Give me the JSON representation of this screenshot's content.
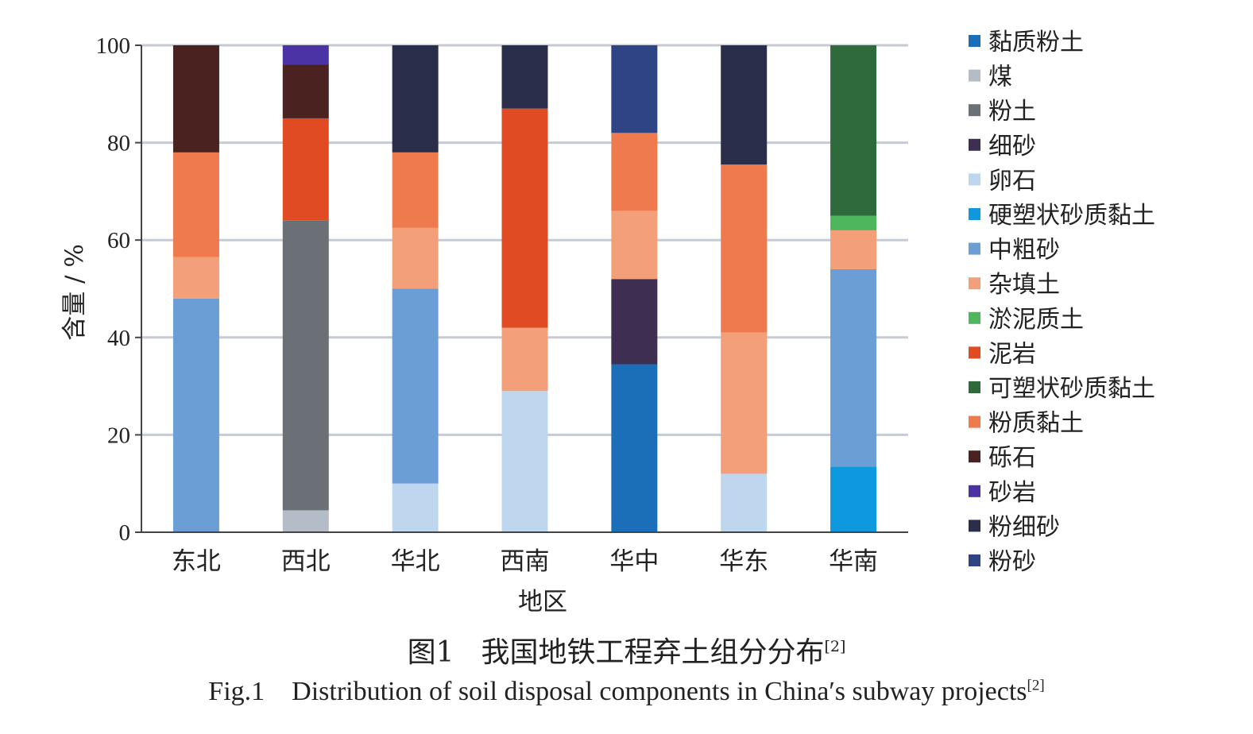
{
  "figure": {
    "caption_cn_label": "图1",
    "caption_cn_text": "我国地铁工程弃土组分分布",
    "caption_ref": "[2]",
    "caption_en_label": "Fig.1",
    "caption_en_text": "Distribution of soil disposal components in China′s subway projects"
  },
  "chart_data": {
    "type": "bar",
    "stacked": true,
    "title": "",
    "xlabel": "地区",
    "ylabel": "含量 / %",
    "ylim": [
      0,
      100
    ],
    "yticks": [
      0,
      20,
      40,
      60,
      80,
      100
    ],
    "grid": true,
    "legend_position": "right",
    "categories": [
      "东北",
      "西北",
      "华北",
      "西南",
      "华中",
      "华东",
      "华南"
    ],
    "series": [
      {
        "name": "黏质粉土",
        "color": "#1a6fb8",
        "values": [
          0,
          0,
          0,
          0,
          34.5,
          0,
          0
        ]
      },
      {
        "name": "煤",
        "color": "#b3bcc7",
        "values": [
          0,
          4.5,
          0,
          0,
          0,
          0,
          0
        ]
      },
      {
        "name": "粉土",
        "color": "#6b7077",
        "values": [
          0,
          59.5,
          0,
          0,
          0,
          0,
          0
        ]
      },
      {
        "name": "细砂",
        "color": "#3e2e52",
        "values": [
          0,
          0,
          0,
          0,
          17.5,
          0,
          0
        ]
      },
      {
        "name": "卵石",
        "color": "#bfd7ee",
        "values": [
          0,
          0,
          10,
          29,
          0,
          12,
          0
        ]
      },
      {
        "name": "硬塑状砂质黏土",
        "color": "#0e98de",
        "values": [
          0,
          0,
          0,
          0,
          0,
          0,
          13.5
        ]
      },
      {
        "name": "中粗砂",
        "color": "#6b9ed4",
        "values": [
          48,
          0,
          40,
          0,
          0,
          0,
          40.5
        ]
      },
      {
        "name": "杂填土",
        "color": "#f3a07a",
        "values": [
          8.5,
          0,
          12.5,
          13,
          14,
          29,
          8
        ]
      },
      {
        "name": "淤泥质土",
        "color": "#4eb75d",
        "values": [
          0,
          0,
          0,
          0,
          0,
          0,
          3
        ]
      },
      {
        "name": "泥岩",
        "color": "#e14b24",
        "values": [
          0,
          21,
          0,
          45,
          0,
          0,
          0
        ]
      },
      {
        "name": "可塑状砂质黏土",
        "color": "#2f6a3c",
        "values": [
          0,
          0,
          0,
          0,
          0,
          0,
          35
        ]
      },
      {
        "name": "粉质黏土",
        "color": "#ee7a4d",
        "values": [
          21.5,
          0,
          15.5,
          0,
          16,
          34.5,
          0
        ]
      },
      {
        "name": "砾石",
        "color": "#4a2220",
        "values": [
          22,
          11,
          0,
          0,
          0,
          0,
          0
        ]
      },
      {
        "name": "砂岩",
        "color": "#4b33a5",
        "values": [
          0,
          4,
          0,
          0,
          0,
          0,
          0
        ]
      },
      {
        "name": "粉细砂",
        "color": "#2a2e4a",
        "values": [
          0,
          0,
          22,
          13,
          0,
          24.5,
          0
        ]
      },
      {
        "name": "粉砂",
        "color": "#2f4484",
        "values": [
          0,
          0,
          0,
          0,
          18,
          0,
          0
        ]
      }
    ]
  }
}
